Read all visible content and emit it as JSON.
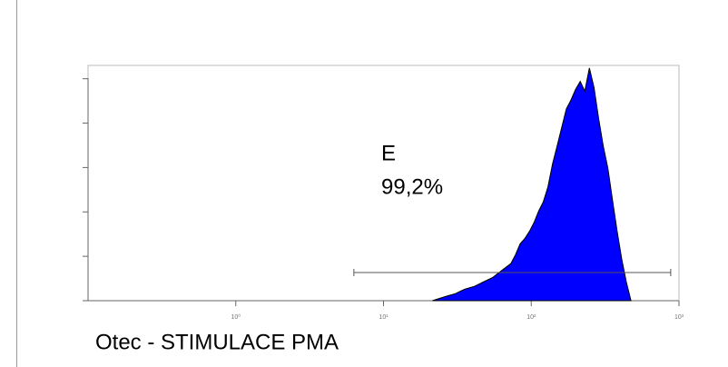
{
  "chart_data": {
    "type": "histogram",
    "x_scale": "log",
    "x": [
      21.4,
      26.6,
      30.7,
      35.5,
      41.0,
      47.3,
      54.6,
      63.1,
      72.9,
      78.3,
      84.1,
      90.4,
      97.2,
      104.4,
      112.2,
      120.5,
      129.6,
      139.3,
      149.6,
      160.7,
      172.8,
      185.7,
      199.5,
      214.4,
      230.4,
      247.6,
      266.1,
      285.9,
      307.3,
      330.2,
      354.8,
      381.3,
      409.8,
      440.3,
      473.2
    ],
    "values": [
      0,
      5,
      8,
      13,
      16,
      21,
      26,
      34,
      42,
      52,
      64,
      70,
      78,
      88,
      101,
      111,
      128,
      154,
      174,
      195,
      216,
      226,
      238,
      247,
      236,
      262,
      240,
      205,
      174,
      149,
      113,
      78,
      47,
      21,
      0
    ],
    "color": "#0000ff",
    "xlim": [
      0.1,
      1000
    ],
    "xticks": [
      {
        "value": 1,
        "label": "10⁰"
      },
      {
        "value": 10,
        "label": "10¹"
      },
      {
        "value": 100,
        "label": "10²"
      },
      {
        "value": 1000,
        "label": "10³"
      }
    ],
    "ylim": [
      0,
      265
    ],
    "yticks": [
      0,
      50,
      100,
      150,
      200,
      250
    ],
    "gate": {
      "label": "E",
      "percent_label": "99,2%",
      "range": [
        6.3,
        879
      ]
    },
    "sample_label": "Otec - STIMULACE PMA"
  }
}
